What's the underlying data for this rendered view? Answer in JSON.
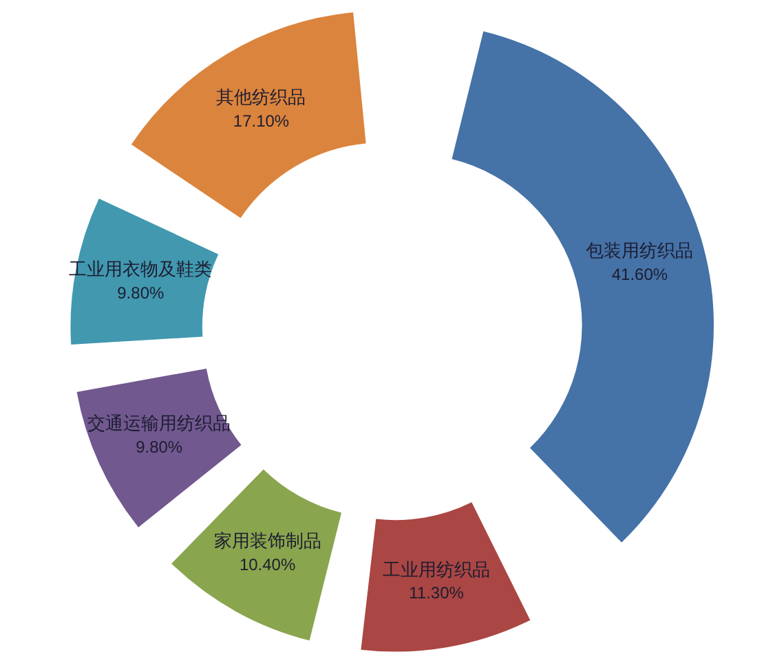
{
  "chart_data": {
    "type": "donut",
    "categories": [
      "包装用纺织品",
      "工业用纺织品",
      "家用装饰制品",
      "交通运输用纺织品",
      "工业用衣物及鞋类",
      "其他纺织品"
    ],
    "values": [
      41.6,
      11.3,
      10.4,
      9.8,
      9.8,
      17.1
    ],
    "value_labels": [
      "41.60%",
      "11.30%",
      "10.40%",
      "9.80%",
      "9.80%",
      "17.10%"
    ],
    "colors": [
      "#4572a7",
      "#aa4643",
      "#89a54e",
      "#71588f",
      "#4198af",
      "#db843d"
    ]
  }
}
